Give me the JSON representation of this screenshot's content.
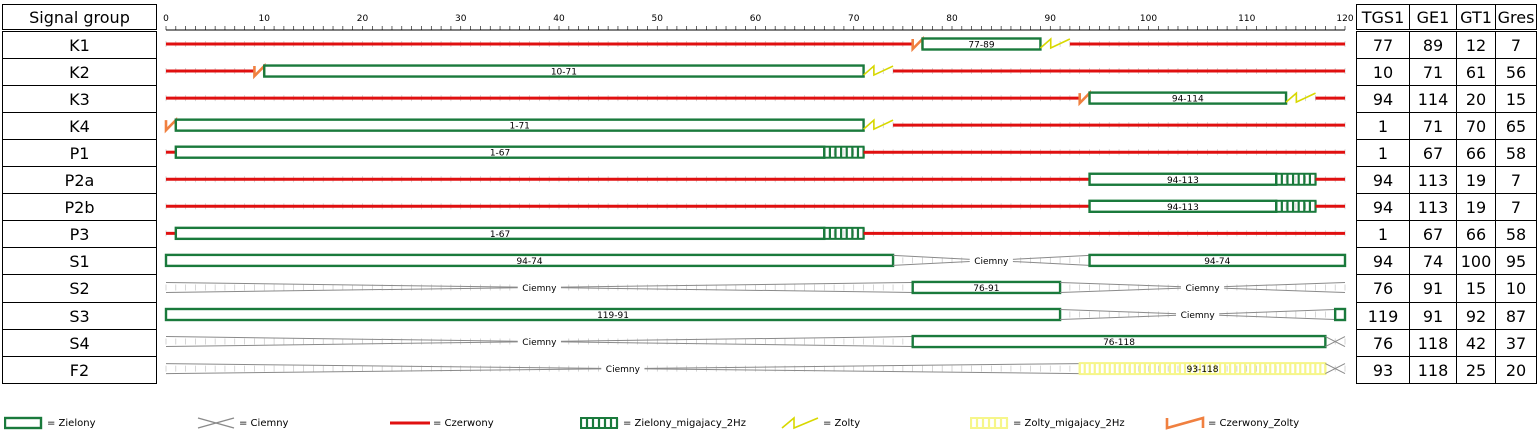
{
  "header": {
    "signal_group_label": "Signal group"
  },
  "table_headers": [
    "TGS1",
    "GE1",
    "GT1",
    "Gres"
  ],
  "axis": {
    "min": 0,
    "max": 120,
    "label_step": 10
  },
  "colors": {
    "zielony": "#1a7a3c",
    "czerwony": "#e01010",
    "zolty": "#d8d800",
    "zolty_migajacy": "#f6f68a",
    "czerwony_zolty": "#f08040",
    "ciemny": "#8a8a8a"
  },
  "rows": [
    {
      "name": "K1",
      "values": [
        "77",
        "89",
        "12",
        "7"
      ],
      "segments": [
        {
          "type": "czerwony",
          "from": 0,
          "to": 76
        },
        {
          "type": "czerwony_zolty",
          "from": 76,
          "to": 77
        },
        {
          "type": "zielony",
          "from": 77,
          "to": 89,
          "label": "77-89"
        },
        {
          "type": "zolty",
          "from": 89,
          "to": 92
        },
        {
          "type": "czerwony",
          "from": 92,
          "to": 120
        }
      ]
    },
    {
      "name": "K2",
      "values": [
        "10",
        "71",
        "61",
        "56"
      ],
      "segments": [
        {
          "type": "czerwony",
          "from": 0,
          "to": 9
        },
        {
          "type": "czerwony_zolty",
          "from": 9,
          "to": 10
        },
        {
          "type": "zielony",
          "from": 10,
          "to": 71,
          "label": "10-71"
        },
        {
          "type": "zolty",
          "from": 71,
          "to": 74
        },
        {
          "type": "czerwony",
          "from": 74,
          "to": 120
        }
      ]
    },
    {
      "name": "K3",
      "values": [
        "94",
        "114",
        "20",
        "15"
      ],
      "segments": [
        {
          "type": "czerwony",
          "from": 0,
          "to": 93
        },
        {
          "type": "czerwony_zolty",
          "from": 93,
          "to": 94
        },
        {
          "type": "zielony",
          "from": 94,
          "to": 114,
          "label": "94-114"
        },
        {
          "type": "zolty",
          "from": 114,
          "to": 117
        },
        {
          "type": "czerwony",
          "from": 117,
          "to": 120
        }
      ]
    },
    {
      "name": "K4",
      "values": [
        "1",
        "71",
        "70",
        "65"
      ],
      "segments": [
        {
          "type": "czerwony_zolty",
          "from": 0,
          "to": 1
        },
        {
          "type": "zielony",
          "from": 1,
          "to": 71,
          "label": "1-71"
        },
        {
          "type": "zolty",
          "from": 71,
          "to": 74
        },
        {
          "type": "czerwony",
          "from": 74,
          "to": 120
        }
      ]
    },
    {
      "name": "P1",
      "values": [
        "1",
        "67",
        "66",
        "58"
      ],
      "segments": [
        {
          "type": "czerwony",
          "from": 0,
          "to": 1
        },
        {
          "type": "zielony",
          "from": 1,
          "to": 67,
          "label": "1-67"
        },
        {
          "type": "zielony_migajacy",
          "from": 67,
          "to": 71
        },
        {
          "type": "czerwony",
          "from": 71,
          "to": 120
        }
      ]
    },
    {
      "name": "P2a",
      "values": [
        "94",
        "113",
        "19",
        "7"
      ],
      "segments": [
        {
          "type": "czerwony",
          "from": 0,
          "to": 94
        },
        {
          "type": "zielony",
          "from": 94,
          "to": 113,
          "label": "94-113"
        },
        {
          "type": "zielony_migajacy",
          "from": 113,
          "to": 117
        },
        {
          "type": "czerwony",
          "from": 117,
          "to": 120
        }
      ]
    },
    {
      "name": "P2b",
      "values": [
        "94",
        "113",
        "19",
        "7"
      ],
      "segments": [
        {
          "type": "czerwony",
          "from": 0,
          "to": 94
        },
        {
          "type": "zielony",
          "from": 94,
          "to": 113,
          "label": "94-113"
        },
        {
          "type": "zielony_migajacy",
          "from": 113,
          "to": 117
        },
        {
          "type": "czerwony",
          "from": 117,
          "to": 120
        }
      ]
    },
    {
      "name": "P3",
      "values": [
        "1",
        "67",
        "66",
        "58"
      ],
      "segments": [
        {
          "type": "czerwony",
          "from": 0,
          "to": 1
        },
        {
          "type": "zielony",
          "from": 1,
          "to": 67,
          "label": "1-67"
        },
        {
          "type": "zielony_migajacy",
          "from": 67,
          "to": 71
        },
        {
          "type": "czerwony",
          "from": 71,
          "to": 120
        }
      ]
    },
    {
      "name": "S1",
      "values": [
        "94",
        "74",
        "100",
        "95"
      ],
      "segments": [
        {
          "type": "zielony",
          "from": 0,
          "to": 74,
          "label": "94-74"
        },
        {
          "type": "ciemny",
          "from": 74,
          "to": 94,
          "label": "Ciemny"
        },
        {
          "type": "zielony",
          "from": 94,
          "to": 120,
          "label": "94-74"
        }
      ]
    },
    {
      "name": "S2",
      "values": [
        "76",
        "91",
        "15",
        "10"
      ],
      "segments": [
        {
          "type": "ciemny",
          "from": 0,
          "to": 76,
          "label": "Ciemny"
        },
        {
          "type": "zielony",
          "from": 76,
          "to": 91,
          "label": "76-91"
        },
        {
          "type": "ciemny",
          "from": 91,
          "to": 120,
          "label": "Ciemny"
        }
      ]
    },
    {
      "name": "S3",
      "values": [
        "119",
        "91",
        "92",
        "87"
      ],
      "segments": [
        {
          "type": "zielony",
          "from": 0,
          "to": 91,
          "label": "119-91"
        },
        {
          "type": "ciemny",
          "from": 91,
          "to": 119,
          "label": "Ciemny"
        },
        {
          "type": "zielony",
          "from": 119,
          "to": 120
        }
      ]
    },
    {
      "name": "S4",
      "values": [
        "76",
        "118",
        "42",
        "37"
      ],
      "segments": [
        {
          "type": "ciemny",
          "from": 0,
          "to": 76,
          "label": "Ciemny"
        },
        {
          "type": "zielony",
          "from": 76,
          "to": 118,
          "label": "76-118"
        },
        {
          "type": "ciemny",
          "from": 118,
          "to": 120
        }
      ]
    },
    {
      "name": "F2",
      "values": [
        "93",
        "118",
        "25",
        "20"
      ],
      "segments": [
        {
          "type": "ciemny",
          "from": 0,
          "to": 93,
          "label": "Ciemny"
        },
        {
          "type": "zolty_migajacy",
          "from": 93,
          "to": 118,
          "label": "93-118"
        },
        {
          "type": "ciemny",
          "from": 118,
          "to": 120
        }
      ]
    }
  ],
  "legend": [
    {
      "type": "zielony",
      "label": "= Zielony"
    },
    {
      "type": "ciemny",
      "label": "= Ciemny"
    },
    {
      "type": "czerwony",
      "label": "= Czerwony"
    },
    {
      "type": "zielony_migajacy",
      "label": "= Zielony_migajacy_2Hz"
    },
    {
      "type": "zolty",
      "label": "= Zolty"
    },
    {
      "type": "zolty_migajacy",
      "label": "= Zolty_migajacy_2Hz"
    },
    {
      "type": "czerwony_zolty",
      "label": "= Czerwony_Zolty"
    }
  ]
}
